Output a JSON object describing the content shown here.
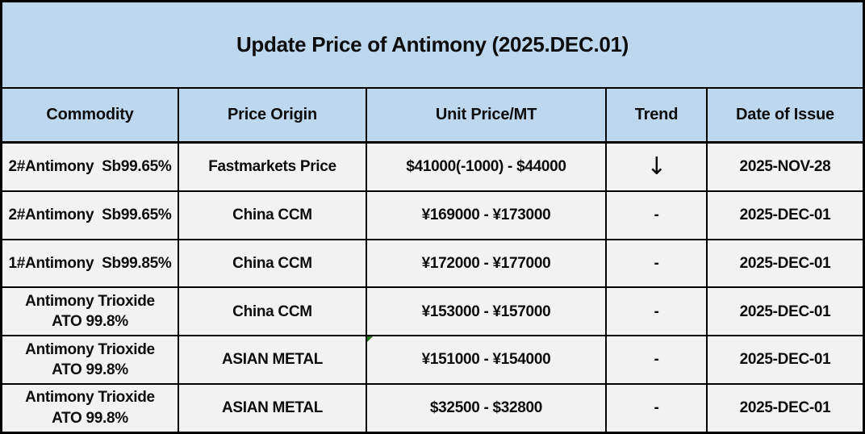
{
  "title": "Update Price of Antimony (2025.DEC.01)",
  "colors": {
    "title_header_bg": "#bdd7ee",
    "row_bg": "#f2f2f2",
    "border_color": "#000000",
    "text_color": "#0d0d0d",
    "marker_green": "#1e7b1e"
  },
  "table": {
    "headers": [
      "Commodity",
      "Price Origin",
      "Unit Price/MT",
      "Trend",
      "Date of Issue"
    ],
    "trend_down_icon": "↓",
    "rows": [
      {
        "commodity": "2#Antimony  Sb99.65%",
        "origin": "Fastmarkets Price",
        "price": "$41000(-1000) - $44000",
        "trend": "↓",
        "date": "2025-NOV-28"
      },
      {
        "commodity": "2#Antimony  Sb99.65%",
        "origin": "China CCM",
        "price": "¥169000 - ¥173000",
        "trend": "-",
        "date": "2025-DEC-01"
      },
      {
        "commodity": "1#Antimony  Sb99.85%",
        "origin": "China CCM",
        "price": "¥172000 - ¥177000",
        "trend": "-",
        "date": "2025-DEC-01"
      },
      {
        "commodity": "Antimony Trioxide\nATO 99.8%",
        "origin": "China CCM",
        "price": "¥153000 - ¥157000",
        "trend": "-",
        "date": "2025-DEC-01"
      },
      {
        "commodity": "Antimony Trioxide\nATO 99.8%",
        "origin": "ASIAN METAL",
        "price": "¥151000 - ¥154000",
        "trend": "-",
        "date": "2025-DEC-01",
        "has_comment_marker": true
      },
      {
        "commodity": "Antimony Trioxide\nATO 99.8%",
        "origin": "ASIAN METAL",
        "price": "$32500 - $32800",
        "trend": "-",
        "date": "2025-DEC-01"
      }
    ]
  }
}
